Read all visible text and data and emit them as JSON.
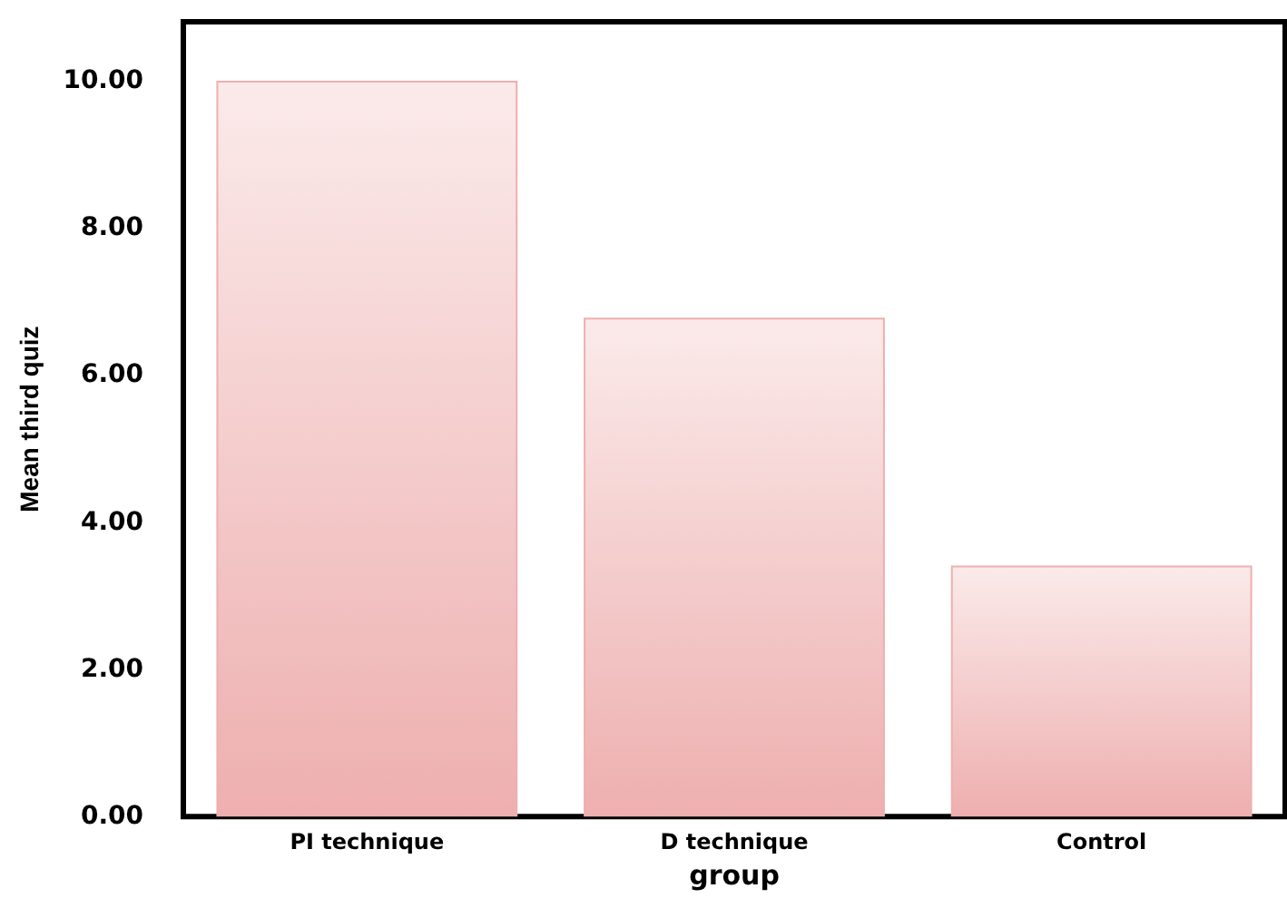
{
  "chart_data": {
    "type": "bar",
    "xlabel": "group",
    "ylabel": "Mean third quiz",
    "categories": [
      "PI technique",
      "D technique",
      "Control"
    ],
    "values": [
      10.0,
      6.78,
      3.41
    ],
    "color": "#eeafaf",
    "ylim": [
      0,
      10.8
    ],
    "yticks": [
      {
        "value": 0,
        "label": "0.00"
      },
      {
        "value": 2,
        "label": "2.00"
      },
      {
        "value": 4,
        "label": "4.00"
      },
      {
        "value": 6,
        "label": "6.00"
      },
      {
        "value": 8,
        "label": "8.00"
      },
      {
        "value": 10,
        "label": "10.00"
      }
    ],
    "grid": false
  }
}
